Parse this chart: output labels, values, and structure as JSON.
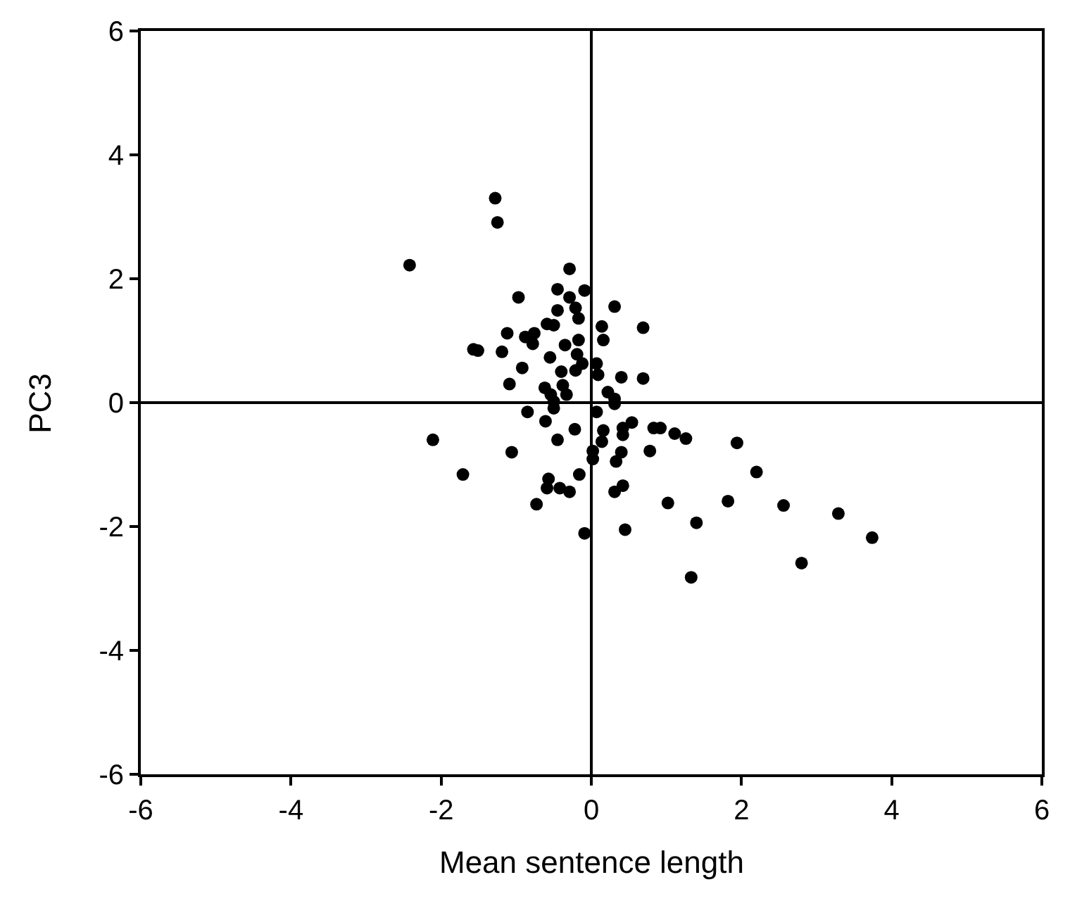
{
  "chart_data": {
    "type": "scatter",
    "xlabel": "Mean sentence length",
    "ylabel": "PC3",
    "xlim": [
      -6,
      6
    ],
    "ylim": [
      -6,
      6
    ],
    "xticks": [
      -6,
      -4,
      -2,
      0,
      2,
      4,
      6
    ],
    "yticks": [
      -6,
      -4,
      -2,
      0,
      2,
      4,
      6
    ],
    "marker": "circle",
    "series": [
      {
        "color": "#000000",
        "x": [
          -1.28,
          -1.25,
          -2.42,
          -0.29,
          -0.09,
          -0.45,
          -0.29,
          -0.97,
          -0.45,
          -0.21,
          -0.17,
          0.31,
          -0.59,
          -0.5,
          0.14,
          0.69,
          -1.12,
          -0.88,
          -0.76,
          -0.78,
          -0.35,
          -0.17,
          0.16,
          -1.57,
          -1.51,
          -1.19,
          -0.55,
          -0.19,
          -0.12,
          -0.92,
          -0.4,
          -0.21,
          0.07,
          0.09,
          0.4,
          0.69,
          -1.09,
          -0.38,
          -0.62,
          -0.33,
          -0.54,
          0.22,
          -0.5,
          0.31,
          -0.85,
          -0.61,
          -0.5,
          0.07,
          0.31,
          -0.22,
          -0.45,
          0.16,
          0.14,
          0.42,
          0.54,
          0.42,
          0.83,
          0.92,
          -2.11,
          -1.06,
          0.02,
          0.02,
          0.4,
          0.78,
          0.33,
          -1.71,
          -0.16,
          -0.57,
          -0.59,
          -0.42,
          -0.29,
          0.42,
          0.31,
          -0.73,
          1.02,
          -0.09,
          0.45,
          1.11,
          1.26,
          1.94,
          2.2,
          1.82,
          1.4,
          2.56,
          3.29,
          3.74,
          2.8,
          1.33
        ],
        "values": [
          3.3,
          2.91,
          2.22,
          2.16,
          1.81,
          1.83,
          1.7,
          1.7,
          1.49,
          1.53,
          1.36,
          1.55,
          1.27,
          1.25,
          1.23,
          1.21,
          1.12,
          1.06,
          1.12,
          0.95,
          0.93,
          1.01,
          1.01,
          0.86,
          0.84,
          0.82,
          0.73,
          0.78,
          0.63,
          0.56,
          0.5,
          0.52,
          0.63,
          0.45,
          0.41,
          0.39,
          0.3,
          0.28,
          0.24,
          0.13,
          0.13,
          0.17,
          0.02,
          0.06,
          -0.15,
          -0.3,
          -0.09,
          -0.15,
          -0.02,
          -0.43,
          -0.6,
          -0.45,
          -0.63,
          -0.41,
          -0.32,
          -0.52,
          -0.41,
          -0.41,
          -0.6,
          -0.8,
          -0.78,
          -0.91,
          -0.8,
          -0.78,
          -0.95,
          -1.16,
          -1.16,
          -1.23,
          -1.38,
          -1.38,
          -1.44,
          -1.34,
          -1.44,
          -1.64,
          -1.62,
          -2.11,
          -2.05,
          -0.5,
          -0.58,
          -0.65,
          -1.12,
          -1.59,
          -1.94,
          -1.66,
          -1.79,
          -2.18,
          -2.59,
          -2.82
        ]
      }
    ]
  }
}
